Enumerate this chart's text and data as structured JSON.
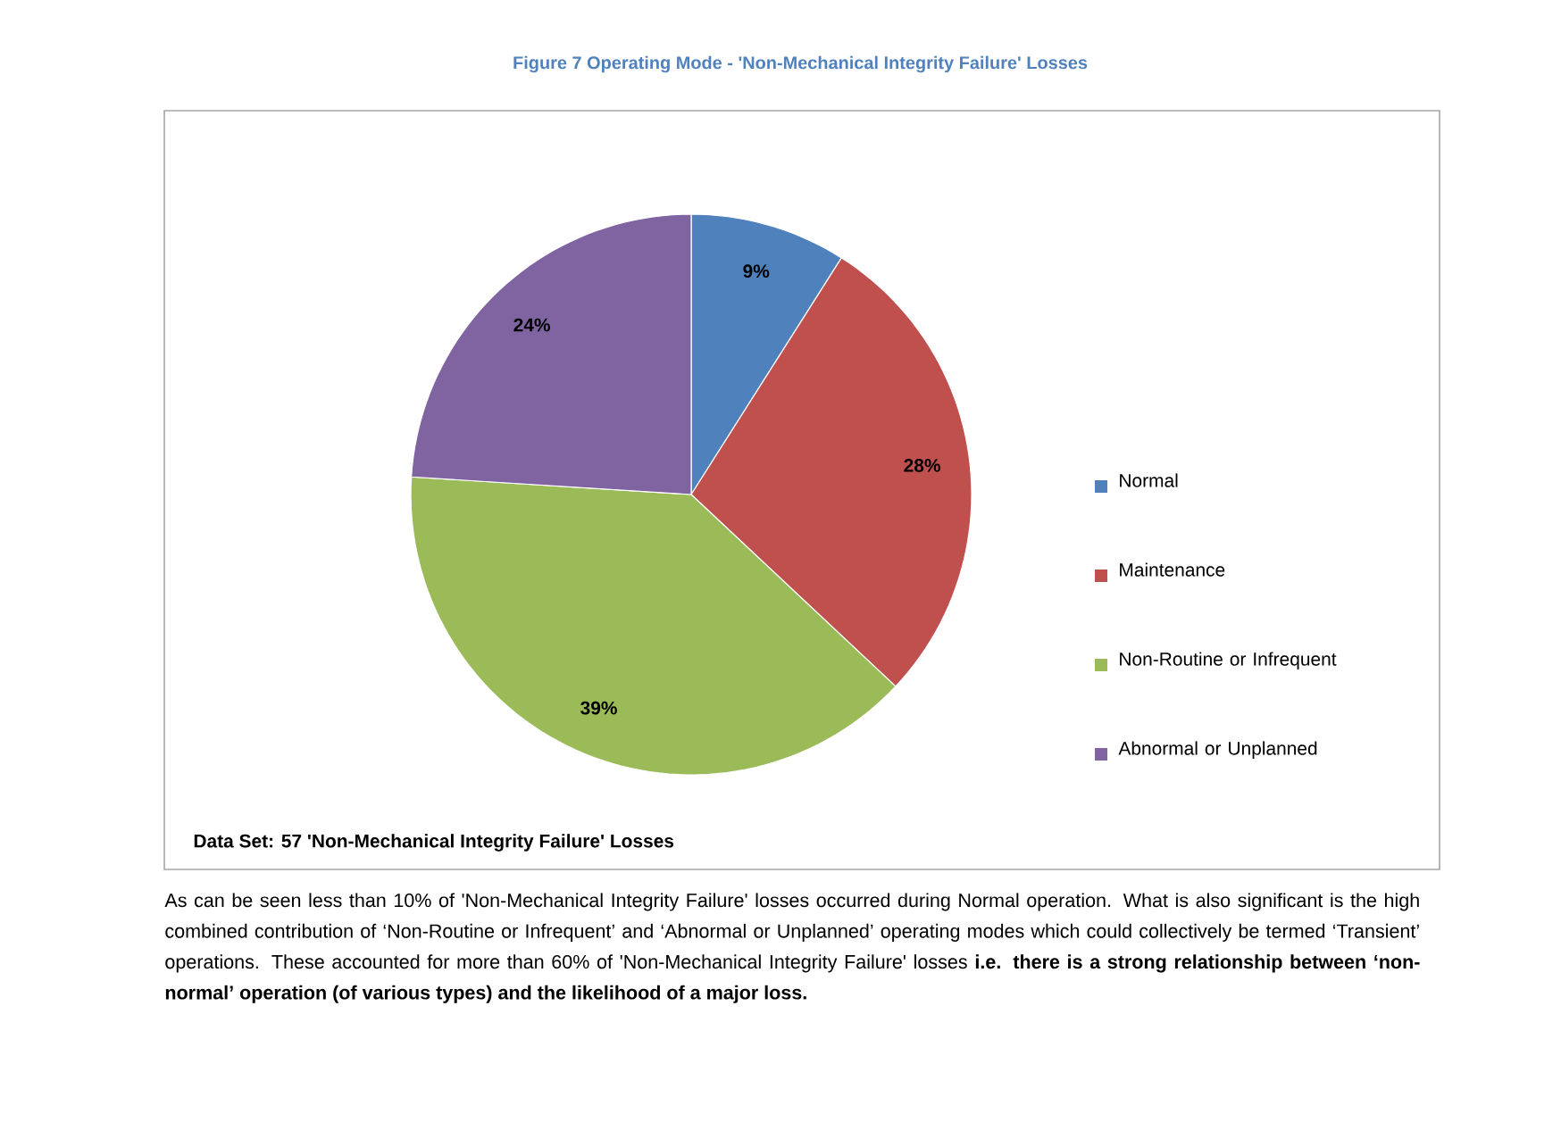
{
  "chart_data": {
    "type": "pie",
    "title": "Figure 7 Operating Mode - 'Non-Mechanical Integrity Failure' Losses",
    "categories": [
      "Normal",
      "Maintenance",
      "Non-Routine or Infrequent",
      "Abnormal or Unplanned"
    ],
    "values": [
      9,
      28,
      39,
      24
    ],
    "value_labels": [
      "9%",
      "28%",
      "39%",
      "24%"
    ],
    "colors": [
      "#4f81bd",
      "#c0504d",
      "#9bbb59",
      "#8064a2"
    ],
    "legend": "right",
    "annotations": [
      "Data Set: 57 'Non-Mechanical Integrity Failure' Losses",
      "As can be seen less than 10% of 'Non-Mechanical Integrity Failure' losses occurred during Normal operation. What is also significant is the high combined contribution of ‘Non-Routine or Infrequent’ and ‘Abnormal or Unplanned’ operating modes which could collectively be termed ‘Transient’ operations. These accounted for more than 60% of 'Non-Mechanical Integrity Failure' losses **i.e. there is a strong relationship between ‘non-normal’ operation (of various types) and the likelihood of a major loss.**"
    ]
  }
}
